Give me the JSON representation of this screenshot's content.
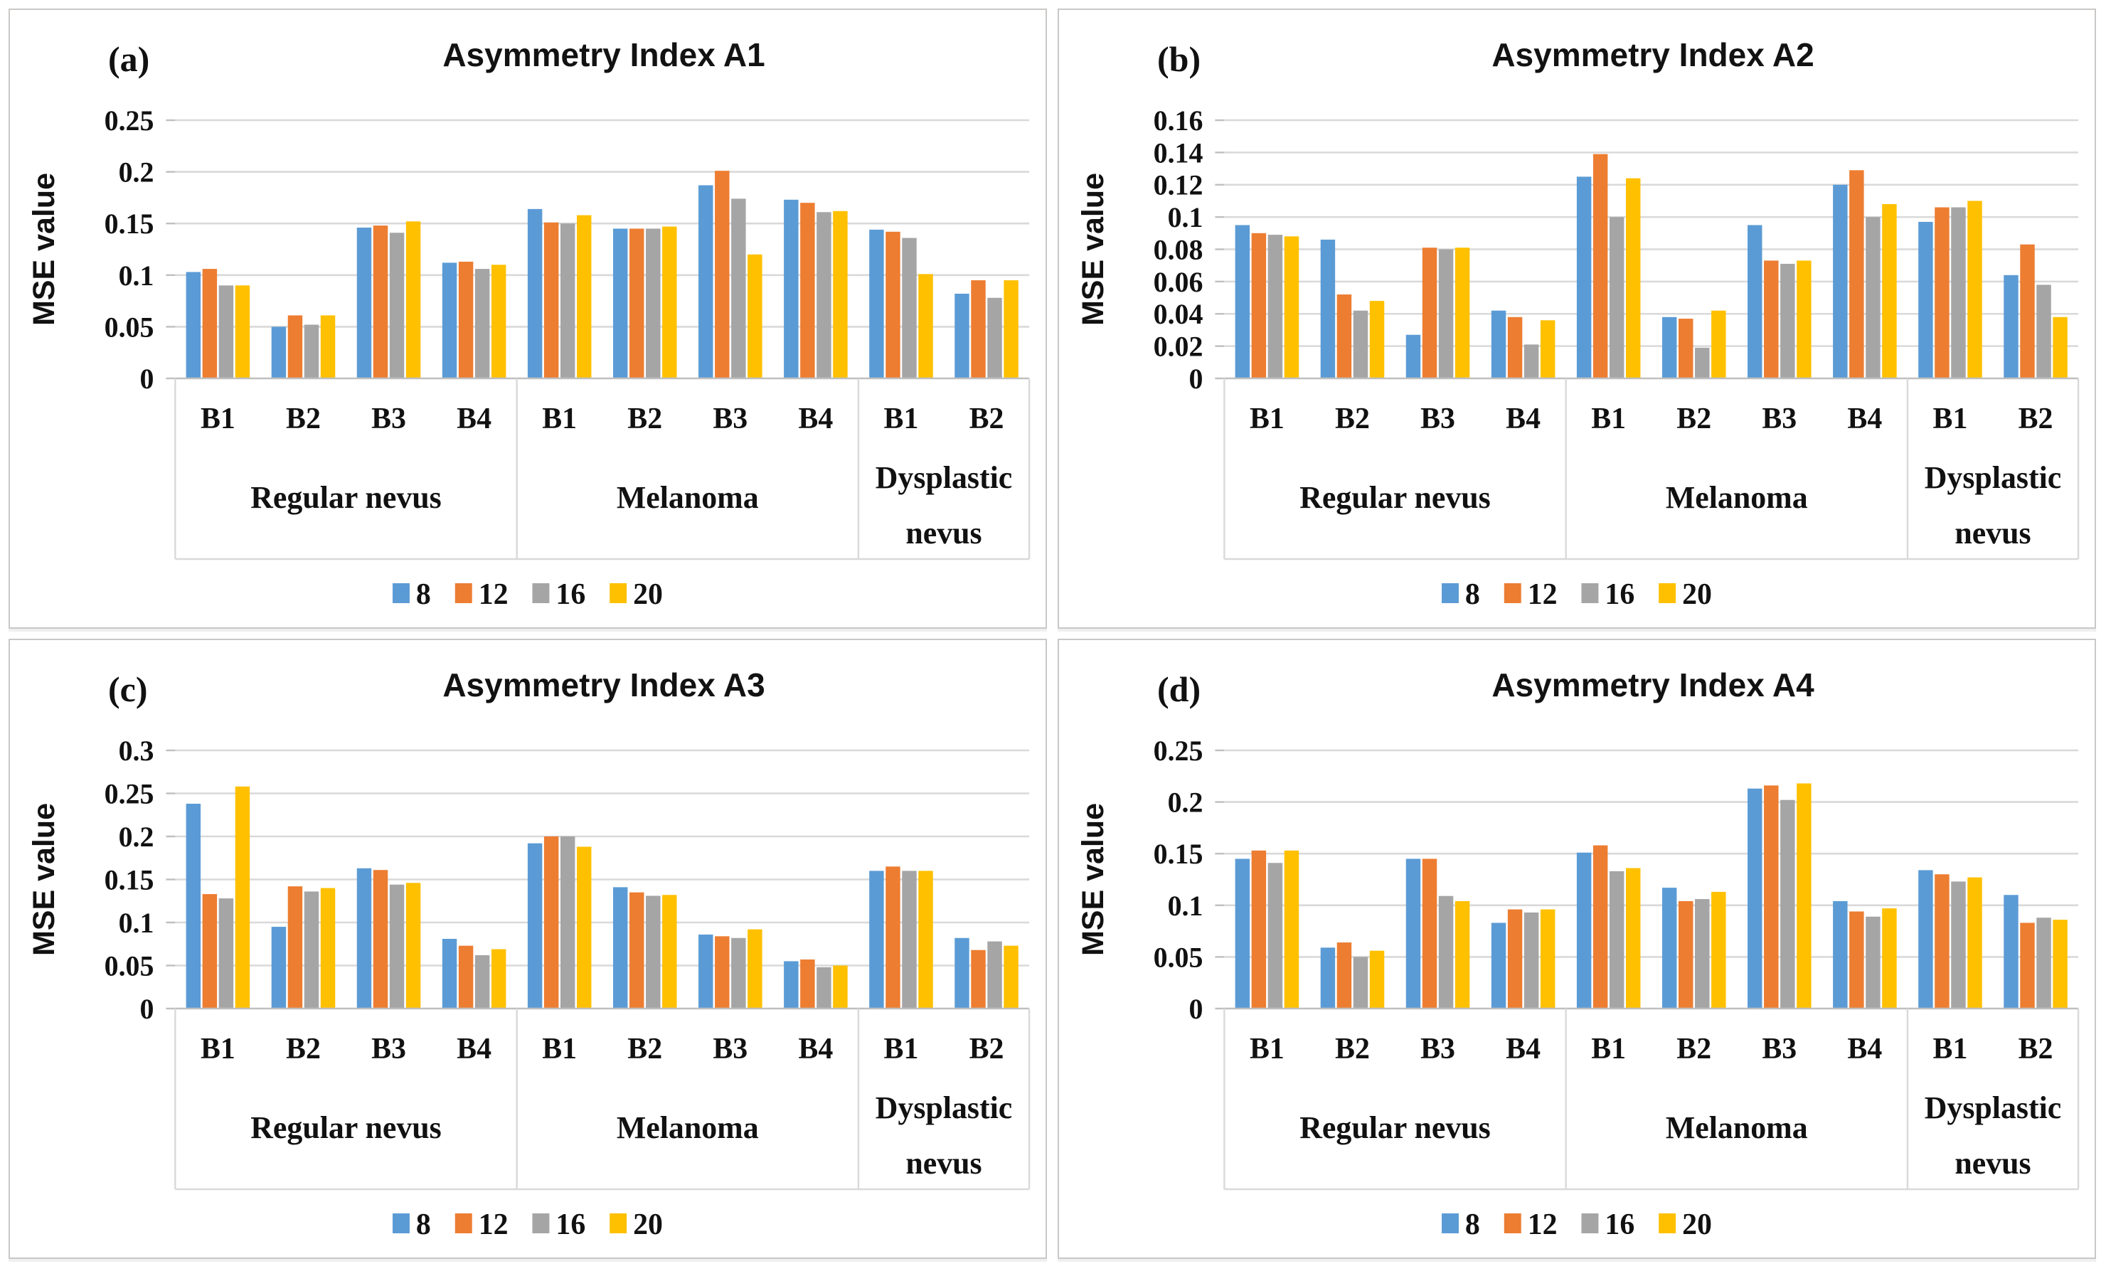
{
  "page": {
    "background": "#ffffff"
  },
  "palette": {
    "series_colors": [
      "#5B9BD5",
      "#ED7D31",
      "#A5A5A5",
      "#FFC000"
    ],
    "gridline": "#D9D9D9",
    "axis_line": "#BFBFBF",
    "label_box_line": "#D9D9D9",
    "text": "#111111",
    "panel_border": "#CAC8C6"
  },
  "legend_labels": [
    "8",
    "12",
    "16",
    "20"
  ],
  "chart_data": [
    {
      "type": "bar",
      "panel_letter": "(a)",
      "title": "Asymmetry Index A1",
      "xlabel": "",
      "ylabel": "MSE value",
      "ylim": [
        0,
        0.25
      ],
      "grid": true,
      "legend_position": "bottom",
      "ytick_values": [
        0,
        0.05,
        0.1,
        0.15,
        0.2,
        0.25
      ],
      "ytick_labels": [
        "0",
        "0.05",
        "0.1",
        "0.15",
        "0.2",
        "0.25"
      ],
      "groups": [
        {
          "label": "Regular nevus",
          "categories": [
            "B1",
            "B2",
            "B3",
            "B4"
          ]
        },
        {
          "label": "Melanoma",
          "categories": [
            "B1",
            "B2",
            "B3",
            "B4"
          ]
        },
        {
          "label": "Dysplastic nevus",
          "categories": [
            "B1",
            "B2"
          ]
        }
      ],
      "series": [
        {
          "name": "8",
          "values": [
            0.103,
            0.05,
            0.146,
            0.112,
            0.164,
            0.145,
            0.187,
            0.173,
            0.144,
            0.082
          ]
        },
        {
          "name": "12",
          "values": [
            0.106,
            0.061,
            0.148,
            0.113,
            0.151,
            0.145,
            0.201,
            0.17,
            0.142,
            0.095
          ]
        },
        {
          "name": "16",
          "values": [
            0.09,
            0.052,
            0.141,
            0.106,
            0.15,
            0.145,
            0.174,
            0.161,
            0.136,
            0.078
          ]
        },
        {
          "name": "20",
          "values": [
            0.09,
            0.061,
            0.152,
            0.11,
            0.158,
            0.147,
            0.12,
            0.162,
            0.101,
            0.095
          ]
        }
      ]
    },
    {
      "type": "bar",
      "panel_letter": "(b)",
      "title": "Asymmetry Index A2",
      "xlabel": "",
      "ylabel": "MSE value",
      "ylim": [
        0,
        0.16
      ],
      "grid": true,
      "legend_position": "bottom",
      "ytick_values": [
        0,
        0.02,
        0.04,
        0.06,
        0.08,
        0.1,
        0.12,
        0.14,
        0.16
      ],
      "ytick_labels": [
        "0",
        "0.02",
        "0.04",
        "0.06",
        "0.08",
        "0.1",
        "0.12",
        "0.14",
        "0.16"
      ],
      "groups": [
        {
          "label": "Regular nevus",
          "categories": [
            "B1",
            "B2",
            "B3",
            "B4"
          ]
        },
        {
          "label": "Melanoma",
          "categories": [
            "B1",
            "B2",
            "B3",
            "B4"
          ]
        },
        {
          "label": "Dysplastic nevus",
          "categories": [
            "B1",
            "B2"
          ]
        }
      ],
      "series": [
        {
          "name": "8",
          "values": [
            0.095,
            0.086,
            0.027,
            0.042,
            0.125,
            0.038,
            0.095,
            0.12,
            0.097,
            0.064
          ]
        },
        {
          "name": "12",
          "values": [
            0.09,
            0.052,
            0.081,
            0.038,
            0.139,
            0.037,
            0.073,
            0.129,
            0.106,
            0.083
          ]
        },
        {
          "name": "16",
          "values": [
            0.089,
            0.042,
            0.08,
            0.021,
            0.1,
            0.019,
            0.071,
            0.1,
            0.106,
            0.058
          ]
        },
        {
          "name": "20",
          "values": [
            0.088,
            0.048,
            0.081,
            0.036,
            0.124,
            0.042,
            0.073,
            0.108,
            0.11,
            0.038
          ]
        }
      ]
    },
    {
      "type": "bar",
      "panel_letter": "(c)",
      "title": "Asymmetry Index A3",
      "xlabel": "",
      "ylabel": "MSE value",
      "ylim": [
        0,
        0.3
      ],
      "grid": true,
      "legend_position": "bottom",
      "ytick_values": [
        0,
        0.05,
        0.1,
        0.15,
        0.2,
        0.25,
        0.3
      ],
      "ytick_labels": [
        "0",
        "0.05",
        "0.1",
        "0.15",
        "0.2",
        "0.25",
        "0.3"
      ],
      "groups": [
        {
          "label": "Regular nevus",
          "categories": [
            "B1",
            "B2",
            "B3",
            "B4"
          ]
        },
        {
          "label": "Melanoma",
          "categories": [
            "B1",
            "B2",
            "B3",
            "B4"
          ]
        },
        {
          "label": "Dysplastic nevus",
          "categories": [
            "B1",
            "B2"
          ]
        }
      ],
      "series": [
        {
          "name": "8",
          "values": [
            0.238,
            0.095,
            0.163,
            0.081,
            0.192,
            0.141,
            0.086,
            0.055,
            0.16,
            0.082
          ]
        },
        {
          "name": "12",
          "values": [
            0.133,
            0.142,
            0.161,
            0.073,
            0.2,
            0.135,
            0.084,
            0.057,
            0.165,
            0.068
          ]
        },
        {
          "name": "16",
          "values": [
            0.128,
            0.136,
            0.144,
            0.062,
            0.2,
            0.131,
            0.082,
            0.048,
            0.16,
            0.078
          ]
        },
        {
          "name": "20",
          "values": [
            0.258,
            0.14,
            0.146,
            0.069,
            0.188,
            0.132,
            0.092,
            0.05,
            0.16,
            0.073
          ]
        }
      ]
    },
    {
      "type": "bar",
      "panel_letter": "(d)",
      "title": "Asymmetry Index A4",
      "xlabel": "",
      "ylabel": "MSE value",
      "ylim": [
        0,
        0.25
      ],
      "grid": true,
      "legend_position": "bottom",
      "ytick_values": [
        0,
        0.05,
        0.1,
        0.15,
        0.2,
        0.25
      ],
      "ytick_labels": [
        "0",
        "0.05",
        "0.1",
        "0.15",
        "0.2",
        "0.25"
      ],
      "groups": [
        {
          "label": "Regular nevus",
          "categories": [
            "B1",
            "B2",
            "B3",
            "B4"
          ]
        },
        {
          "label": "Melanoma",
          "categories": [
            "B1",
            "B2",
            "B3",
            "B4"
          ]
        },
        {
          "label": "Dysplastic nevus",
          "categories": [
            "B1",
            "B2"
          ]
        }
      ],
      "series": [
        {
          "name": "8",
          "values": [
            0.145,
            0.059,
            0.145,
            0.083,
            0.151,
            0.117,
            0.213,
            0.104,
            0.134,
            0.11
          ]
        },
        {
          "name": "12",
          "values": [
            0.153,
            0.064,
            0.145,
            0.096,
            0.158,
            0.104,
            0.216,
            0.094,
            0.13,
            0.083
          ]
        },
        {
          "name": "16",
          "values": [
            0.141,
            0.05,
            0.109,
            0.093,
            0.133,
            0.106,
            0.202,
            0.089,
            0.123,
            0.088
          ]
        },
        {
          "name": "20",
          "values": [
            0.153,
            0.056,
            0.104,
            0.096,
            0.136,
            0.113,
            0.218,
            0.097,
            0.127,
            0.086
          ]
        }
      ]
    }
  ]
}
